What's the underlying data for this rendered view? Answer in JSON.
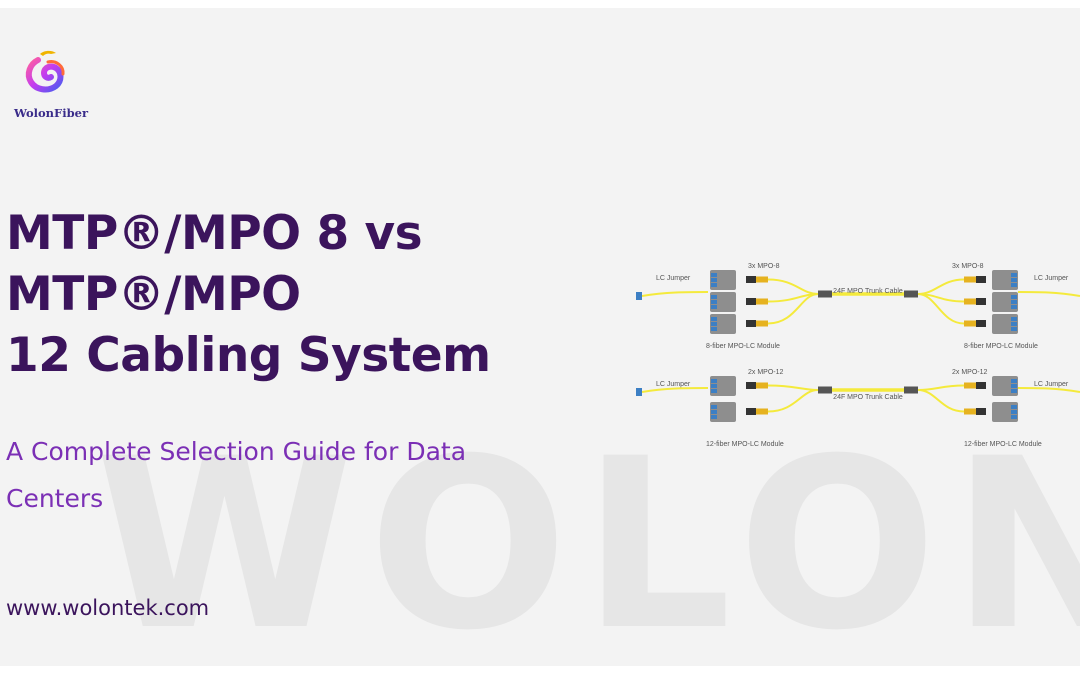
{
  "brand": {
    "name": "WolonFiber",
    "colors": {
      "purple": "#3b145c",
      "accent": "#7b2fb5",
      "fiber": "#f4ea3c",
      "module": "#8e8e8e",
      "port": "#3c7fc4",
      "connector": "#e6b21f"
    }
  },
  "title": {
    "line1": "MTP®/MPO 8 vs MTP®/MPO",
    "line2": "12 Cabling System"
  },
  "subtitle": {
    "line1": "A Complete Selection Guide for Data",
    "line2": "Centers"
  },
  "url": "www.wolontek.com",
  "watermark": "WOLON",
  "diagram": {
    "top": {
      "lc_jumper_left": "LC Jumper",
      "mpo_left": "3x MPO-8",
      "trunk": "24F MPO Trunk Cable",
      "mpo_right": "3x MPO-8",
      "lc_jumper_right": "LC Jumper",
      "module_left": "8-fiber MPO-LC Module",
      "module_right": "8-fiber MPO-LC Module"
    },
    "bottom": {
      "lc_jumper_left": "LC Jumper",
      "mpo_left": "2x MPO-12",
      "trunk": "24F MPO Trunk Cable",
      "mpo_right": "2x MPO-12",
      "lc_jumper_right": "LC Jumper",
      "module_left": "12-fiber MPO-LC Module",
      "module_right": "12-fiber MPO-LC Module"
    }
  }
}
